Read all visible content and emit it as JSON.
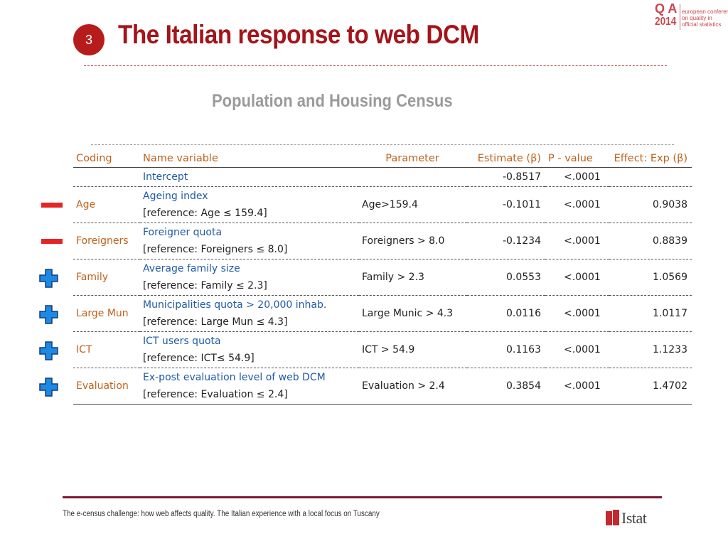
{
  "slide": {
    "number": "3",
    "title": "The Italian response to web DCM",
    "subtitle": "Population and Housing Census",
    "footer": "The e-census challenge: how web affects quality. The Italian experience with a local focus on Tuscany"
  },
  "conference_logo": {
    "mark": "Q A",
    "year": "2014",
    "text": "european conference\non quality in\nofficial statistics"
  },
  "org_logo": {
    "name": "Istat"
  },
  "colors": {
    "title": "#a4141a",
    "badge": "#b71c1c",
    "coding": "#c0621a",
    "variable": "#1f5aa6",
    "minus": "#e32624",
    "plus": "#1e88e5"
  },
  "table": {
    "headers": {
      "coding": "Coding",
      "name": "Name variable",
      "parameter": "Parameter",
      "estimate": "Estimate (β)",
      "pvalue": "P - value",
      "effect": "Effect: Exp (β)"
    },
    "intercept": {
      "name": "Intercept",
      "estimate": "-0.8517",
      "pvalue": "<.0001",
      "effect": ""
    },
    "rows": [
      {
        "coding": "Age",
        "name": "Ageing index",
        "reference": "[reference: Age ≤ 159.4]",
        "parameter": "Age>159.4",
        "estimate": "-0.1011",
        "pvalue": "<.0001",
        "effect": "0.9038",
        "sign": "minus"
      },
      {
        "coding": "Foreigners",
        "name": "Foreigner quota",
        "reference": "[reference: Foreigners ≤ 8.0]",
        "parameter": "Foreigners > 8.0",
        "estimate": "-0.1234",
        "pvalue": "<.0001",
        "effect": "0.8839",
        "sign": "minus"
      },
      {
        "coding": "Family",
        "name": "Average family size",
        "reference": "[reference: Family ≤ 2.3]",
        "parameter": "Family > 2.3",
        "estimate": "0.0553",
        "pvalue": "<.0001",
        "effect": "1.0569",
        "sign": "plus"
      },
      {
        "coding": "Large Mun",
        "name": "Municipalities quota > 20,000 inhab.",
        "reference": "[reference: Large Mun ≤ 4.3]",
        "parameter": "Large Munic > 4.3",
        "estimate": "0.0116",
        "pvalue": "<.0001",
        "effect": "1.0117",
        "sign": "plus"
      },
      {
        "coding": "ICT",
        "name": "ICT users quota",
        "reference": "[reference: ICT≤ 54.9]",
        "parameter": "ICT > 54.9",
        "estimate": "0.1163",
        "pvalue": "<.0001",
        "effect": "1.1233",
        "sign": "plus"
      },
      {
        "coding": "Evaluation",
        "name": "Ex-post evaluation level of web DCM",
        "reference": "[reference: Evaluation ≤ 2.4]",
        "parameter": "Evaluation > 2.4",
        "estimate": "0.3854",
        "pvalue": "<.0001",
        "effect": "1.4702",
        "sign": "plus"
      }
    ]
  }
}
